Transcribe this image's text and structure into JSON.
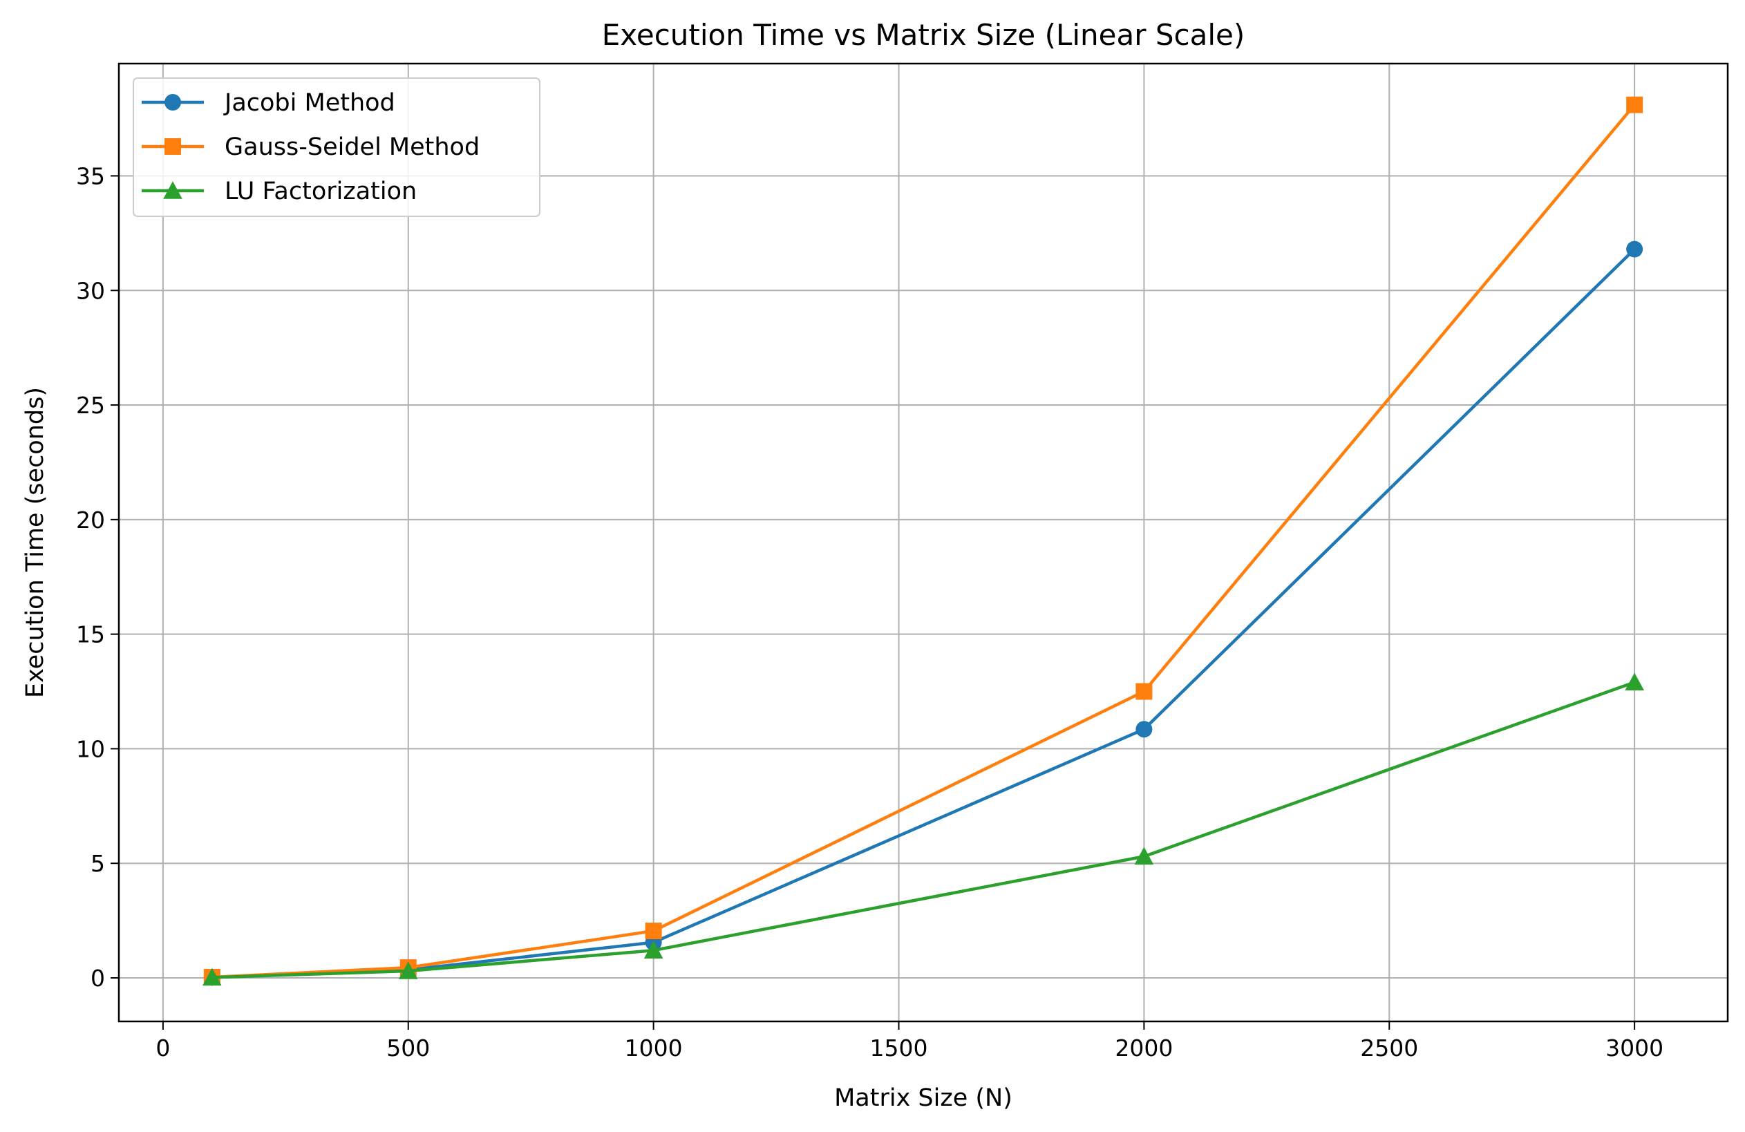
{
  "chart_data": {
    "type": "line",
    "title": "Execution Time vs Matrix Size (Linear Scale)",
    "xlabel": "Matrix Size (N)",
    "ylabel": "Execution Time (seconds)",
    "xlim": [
      -90,
      3190
    ],
    "ylim": [
      -1.9,
      39.9
    ],
    "xticks": [
      0,
      500,
      1000,
      1500,
      2000,
      2500,
      3000
    ],
    "yticks": [
      0,
      5,
      10,
      15,
      20,
      25,
      30,
      35
    ],
    "x": [
      100,
      500,
      1000,
      2000,
      3000
    ],
    "grid": true,
    "legend_position": "top-left",
    "series": [
      {
        "name": "Jacobi Method",
        "color": "#1f77b4",
        "marker": "circle",
        "values": [
          0.02,
          0.35,
          1.55,
          10.85,
          31.8
        ]
      },
      {
        "name": "Gauss-Seidel Method",
        "color": "#ff7f0e",
        "marker": "square",
        "values": [
          0.03,
          0.45,
          2.05,
          12.5,
          38.1
        ]
      },
      {
        "name": "LU Factorization",
        "color": "#2ca02c",
        "marker": "triangle",
        "values": [
          0.02,
          0.3,
          1.2,
          5.3,
          12.9
        ]
      }
    ]
  }
}
